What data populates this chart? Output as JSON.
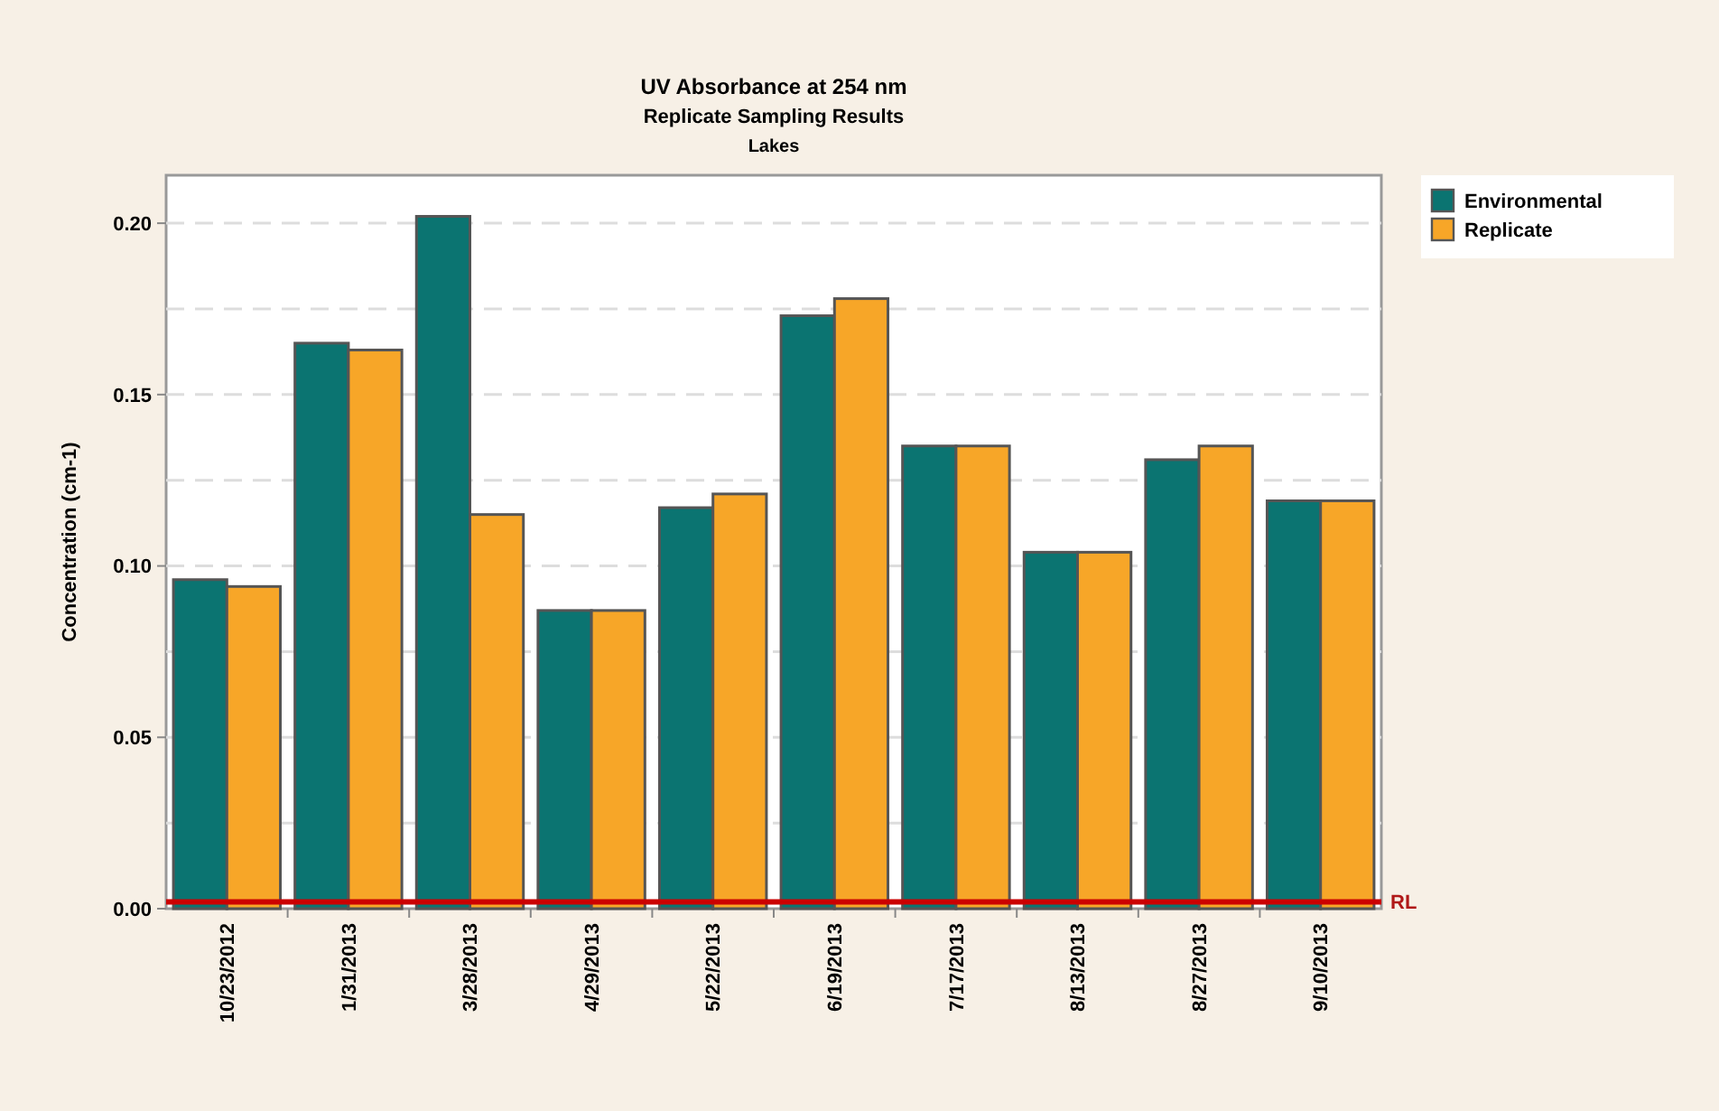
{
  "chart_data": {
    "type": "bar",
    "title": "UV Absorbance at 254 nm",
    "subtitle": "Replicate Sampling Results",
    "annotations": [
      "Lakes"
    ],
    "ylabel": "Concentration (cm-1)",
    "categories": [
      "10/23/2012",
      "1/31/2013",
      "3/28/2013",
      "4/29/2013",
      "5/22/2013",
      "6/19/2013",
      "7/17/2013",
      "8/13/2013",
      "8/27/2013",
      "9/10/2013"
    ],
    "series": [
      {
        "name": "Environmental",
        "color": "#0b7471",
        "values": [
          0.096,
          0.165,
          0.202,
          0.087,
          0.117,
          0.173,
          0.135,
          0.104,
          0.131,
          0.119
        ]
      },
      {
        "name": "Replicate",
        "color": "#f7a628",
        "values": [
          0.094,
          0.163,
          0.115,
          0.087,
          0.121,
          0.178,
          0.135,
          0.104,
          0.135,
          0.119
        ]
      }
    ],
    "ylim": [
      0,
      0.214
    ],
    "yticks": [
      {
        "value": 0,
        "label": "0.00"
      },
      {
        "value": 0.025,
        "label": null
      },
      {
        "value": 0.05,
        "label": "0.05"
      },
      {
        "value": 0.075,
        "label": null
      },
      {
        "value": 0.1,
        "label": "0.10"
      },
      {
        "value": 0.125,
        "label": null
      },
      {
        "value": 0.15,
        "label": "0.15"
      },
      {
        "value": 0.175,
        "label": null
      },
      {
        "value": 0.2,
        "label": "0.20"
      }
    ],
    "ref_lines": [
      {
        "axis": "y",
        "value": 0.002,
        "label": "RL",
        "color": "#cc0000"
      }
    ],
    "grid": "y",
    "legend": "top right"
  }
}
